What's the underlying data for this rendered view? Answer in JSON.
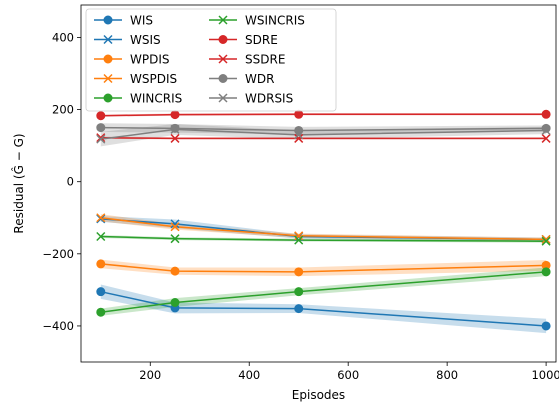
{
  "chart_data": {
    "type": "line",
    "xlabel": "Episodes",
    "ylabel": "Residual (Ĝ − G)",
    "xlim": [
      60,
      1020
    ],
    "ylim": [
      -500,
      490
    ],
    "xticks": [
      200,
      400,
      600,
      800,
      1000
    ],
    "xtick_labels": [
      "200",
      "400",
      "600",
      "800",
      "1000"
    ],
    "yticks": [
      -400,
      -200,
      0,
      200,
      400
    ],
    "ytick_labels": [
      "−400",
      "−200",
      "0",
      "200",
      "400"
    ],
    "grid": false,
    "legend_position": "top-left",
    "legend_columns": 2,
    "x": [
      100,
      250,
      500,
      1000
    ],
    "series": [
      {
        "name": "WIS",
        "color": "#1f77b4",
        "marker": "circle",
        "values": [
          -305,
          -350,
          -352,
          -400
        ],
        "band": [
          20,
          15,
          12,
          20
        ]
      },
      {
        "name": "WSIS",
        "color": "#1f77b4",
        "marker": "x",
        "values": [
          -103,
          -117,
          -152,
          -160
        ],
        "band": [
          8,
          12,
          6,
          5
        ]
      },
      {
        "name": "WPDIS",
        "color": "#ff7f0e",
        "marker": "circle",
        "values": [
          -228,
          -248,
          -250,
          -232
        ],
        "band": [
          12,
          10,
          12,
          15
        ]
      },
      {
        "name": "WSPDIS",
        "color": "#ff7f0e",
        "marker": "x",
        "values": [
          -100,
          -125,
          -150,
          -160
        ],
        "band": [
          10,
          8,
          6,
          5
        ]
      },
      {
        "name": "WINCRIS",
        "color": "#2ca02c",
        "marker": "circle",
        "values": [
          -362,
          -335,
          -305,
          -250
        ],
        "band": [
          10,
          12,
          10,
          12
        ]
      },
      {
        "name": "WSINCRIS",
        "color": "#2ca02c",
        "marker": "x",
        "values": [
          -152,
          -158,
          -162,
          -165
        ],
        "band": [
          4,
          4,
          4,
          4
        ]
      },
      {
        "name": "SDRE",
        "color": "#d62728",
        "marker": "circle",
        "values": [
          183,
          186,
          187,
          187
        ],
        "band": [
          3,
          3,
          3,
          3
        ]
      },
      {
        "name": "SSDRE",
        "color": "#d62728",
        "marker": "x",
        "values": [
          122,
          120,
          120,
          120
        ],
        "band": [
          3,
          3,
          3,
          3
        ]
      },
      {
        "name": "WDR",
        "color": "#7f7f7f",
        "marker": "circle",
        "values": [
          150,
          148,
          142,
          148
        ],
        "band": [
          12,
          12,
          10,
          8
        ]
      },
      {
        "name": "WDRSIS",
        "color": "#7f7f7f",
        "marker": "x",
        "values": [
          118,
          145,
          130,
          142
        ],
        "band": [
          20,
          15,
          12,
          10
        ]
      }
    ]
  }
}
